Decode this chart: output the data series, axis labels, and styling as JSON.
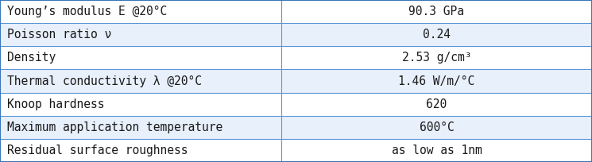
{
  "rows": [
    [
      "Young’s modulus E @20°C",
      "90.3 GPa"
    ],
    [
      "Poisson ratio ν",
      "0.24"
    ],
    [
      "Density",
      "2.53 g/cm³"
    ],
    [
      "Thermal conductivity λ @20°C",
      "1.46 W/m/°C"
    ],
    [
      "Knoop hardness",
      "620"
    ],
    [
      "Maximum application temperature",
      "600°C"
    ],
    [
      "Residual surface roughness",
      "as low as 1nm"
    ]
  ],
  "col_split": 0.475,
  "alt_row_color": "#e8f0fb",
  "white_row_color": "#ffffff",
  "text_color": "#1a1a1a",
  "font_size": 10.5,
  "line_color": "#5a96d8",
  "outer_border_color": "#3a76b8"
}
